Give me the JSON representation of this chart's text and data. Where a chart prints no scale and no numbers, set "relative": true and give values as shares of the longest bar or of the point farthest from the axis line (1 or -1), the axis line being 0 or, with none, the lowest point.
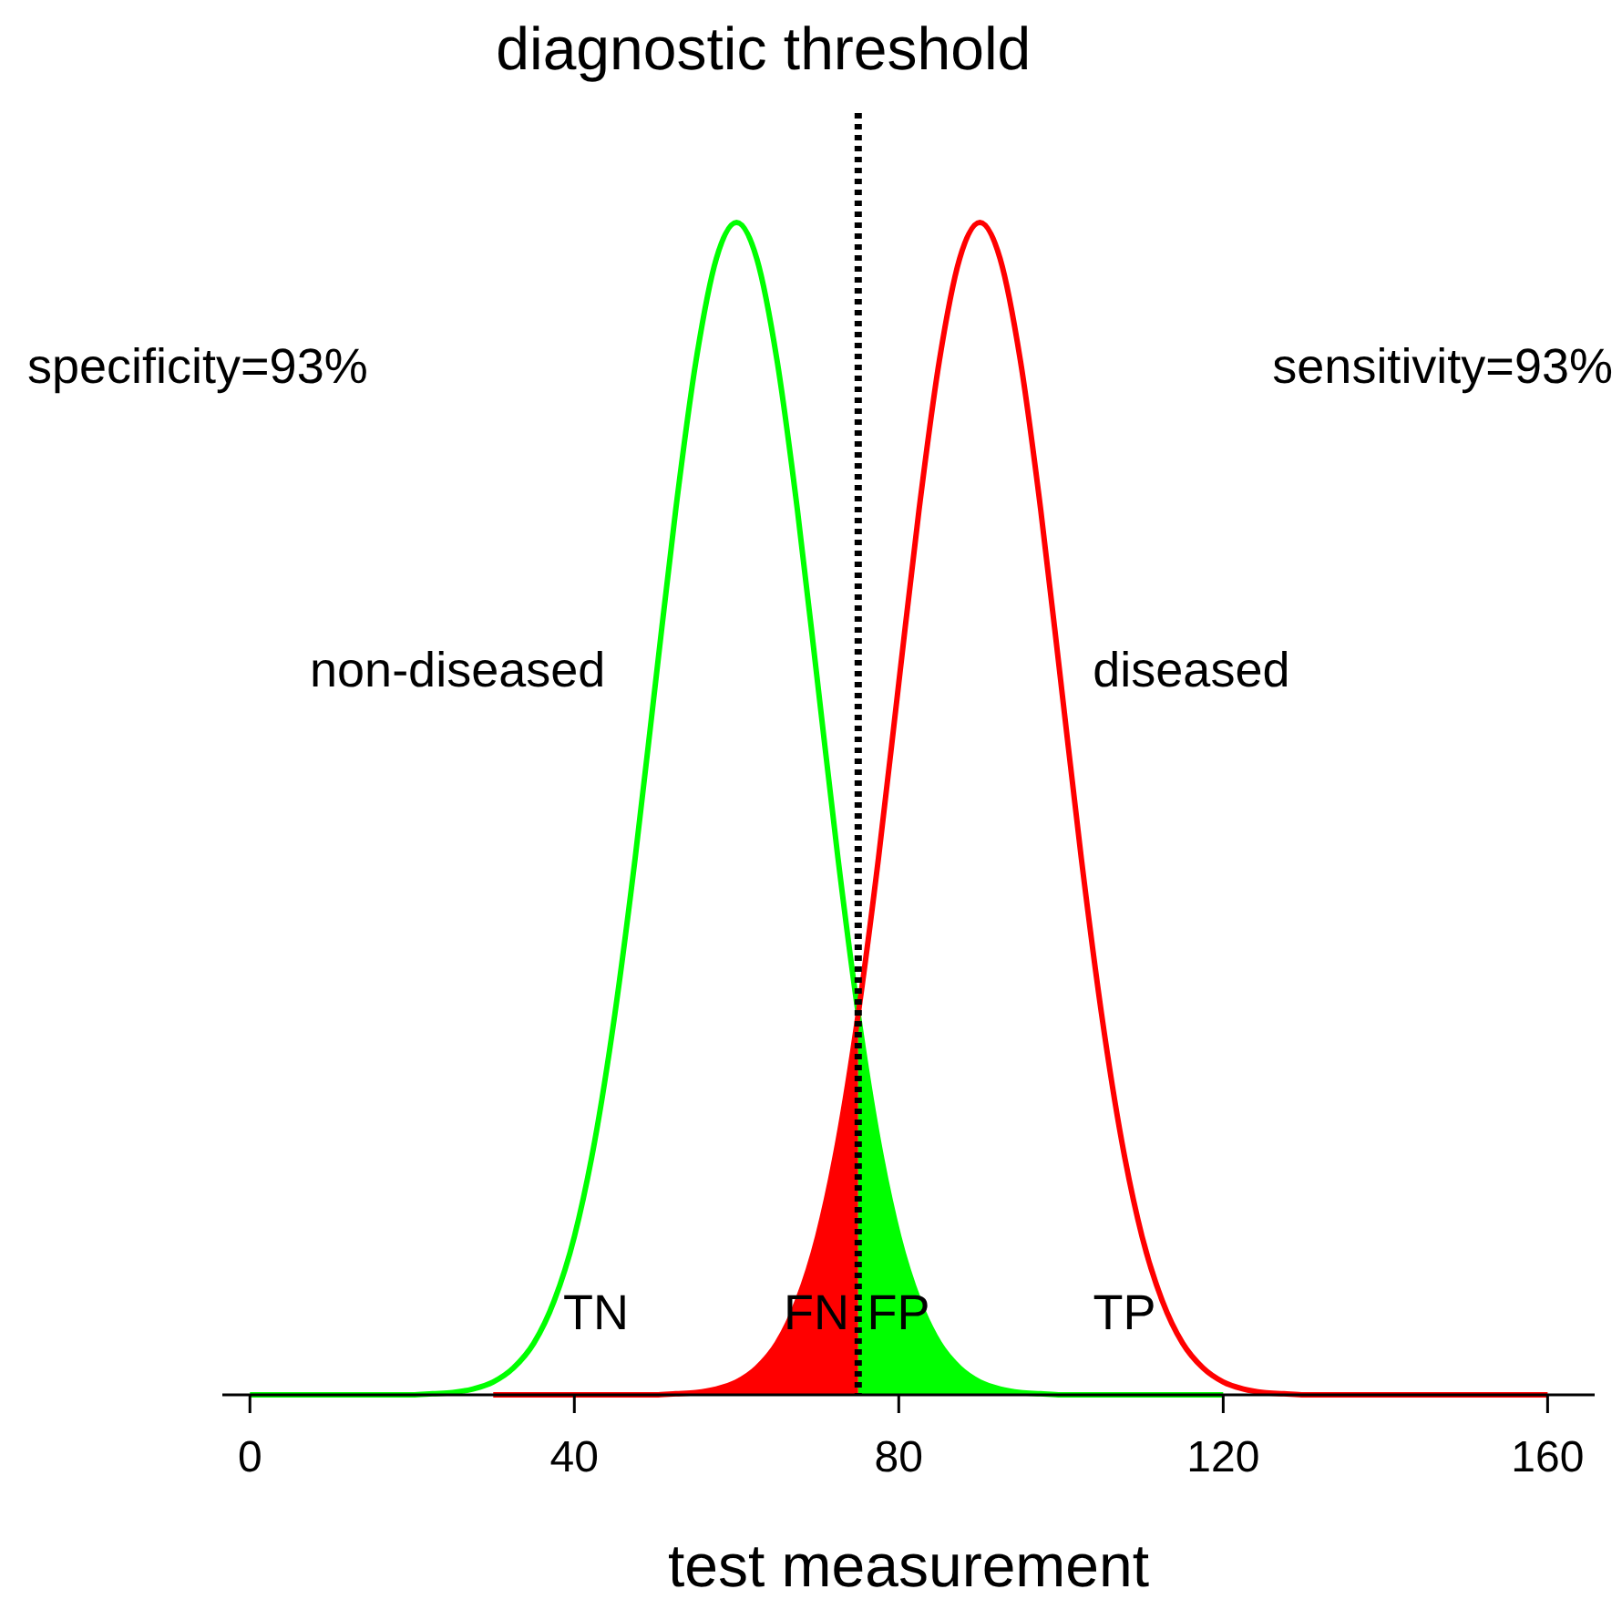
{
  "chart_data": {
    "type": "line",
    "relative": true,
    "xlabel": "test measurement",
    "xlim": [
      -3.4,
      165.8
    ],
    "xticks": [
      0,
      40,
      80,
      120,
      160
    ],
    "grid": false,
    "series": [
      {
        "type": "area",
        "color": "#ff0000",
        "x": [
          30,
          40,
          50,
          52.5,
          55,
          57.5,
          60,
          62.5,
          65,
          67.5,
          70,
          72.5,
          75
        ],
        "values": [
          0,
          0,
          0,
          0.001,
          0.002,
          0.005,
          0.011,
          0.023,
          0.044,
          0.08,
          0.135,
          0.216,
          0.325
        ]
      },
      {
        "type": "area",
        "color": "#00ff00",
        "x": [
          75,
          77.5,
          80,
          82.5,
          85,
          87.5,
          90,
          92.5,
          95,
          97.5,
          100,
          110,
          120
        ],
        "values": [
          0.325,
          0.216,
          0.135,
          0.08,
          0.044,
          0.023,
          0.011,
          0.005,
          0.002,
          0.001,
          0,
          0,
          0
        ]
      },
      {
        "name": "non-diseased",
        "color": "#00ff00",
        "x": [
          0,
          10,
          20,
          22.5,
          25,
          27.5,
          30,
          32.5,
          35,
          37.5,
          40,
          42.5,
          45,
          47.5,
          50,
          52.5,
          55,
          57.5,
          60,
          62.5,
          65,
          67.5,
          70,
          72.5,
          75,
          77.5,
          80,
          82.5,
          85,
          87.5,
          90,
          92.5,
          95,
          97.5,
          100,
          110,
          120
        ],
        "values": [
          0,
          0,
          0,
          0.001,
          0.002,
          0.005,
          0.011,
          0.023,
          0.044,
          0.08,
          0.135,
          0.216,
          0.325,
          0.458,
          0.607,
          0.755,
          0.882,
          0.969,
          1,
          0.969,
          0.882,
          0.755,
          0.607,
          0.458,
          0.325,
          0.216,
          0.135,
          0.08,
          0.044,
          0.023,
          0.011,
          0.005,
          0.002,
          0.001,
          0,
          0,
          0
        ]
      },
      {
        "name": "diseased",
        "color": "#ff0000",
        "x": [
          30,
          40,
          50,
          52.5,
          55,
          57.5,
          60,
          62.5,
          65,
          67.5,
          70,
          72.5,
          75,
          77.5,
          80,
          82.5,
          85,
          87.5,
          90,
          92.5,
          95,
          97.5,
          100,
          102.5,
          105,
          107.5,
          110,
          112.5,
          115,
          117.5,
          120,
          122.5,
          125,
          127.5,
          130,
          140,
          150,
          160
        ],
        "values": [
          0,
          0,
          0,
          0.001,
          0.002,
          0.005,
          0.011,
          0.023,
          0.044,
          0.08,
          0.135,
          0.216,
          0.325,
          0.458,
          0.607,
          0.755,
          0.882,
          0.969,
          1,
          0.969,
          0.882,
          0.755,
          0.607,
          0.458,
          0.325,
          0.216,
          0.135,
          0.08,
          0.044,
          0.023,
          0.011,
          0.005,
          0.002,
          0.001,
          0,
          0,
          0,
          0
        ]
      }
    ],
    "ref_lines": [
      {
        "axis": "x",
        "value": 75,
        "label": "diagnostic threshold",
        "line_style": "dotted",
        "color": "#000000"
      }
    ],
    "annotations": [
      "specificity=93%",
      "sensitivity=93%",
      "TN",
      "FN",
      "FP",
      "TP"
    ]
  }
}
